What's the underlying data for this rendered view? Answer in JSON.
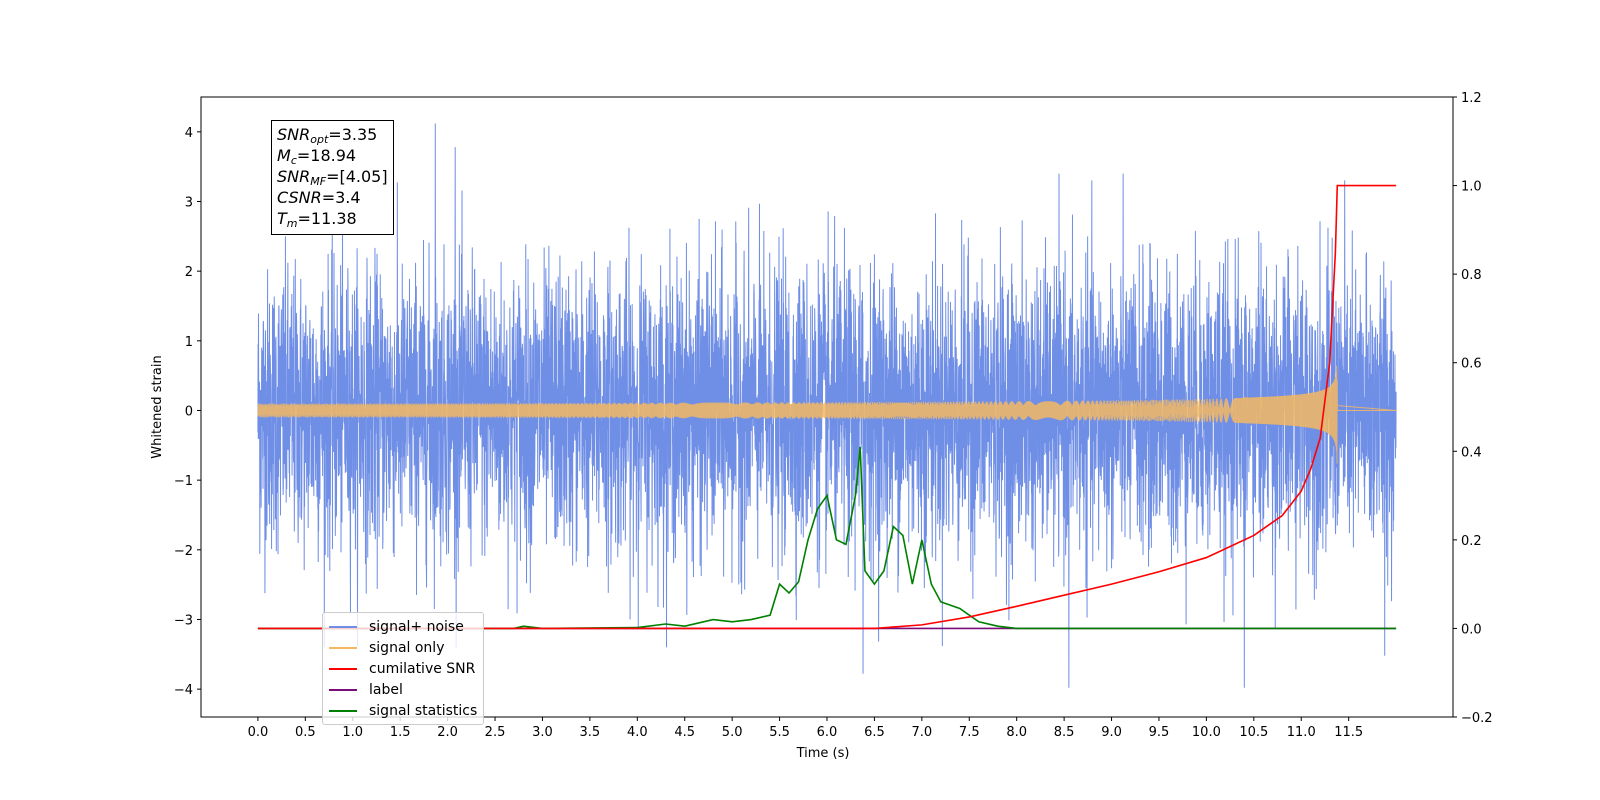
{
  "chart_data": {
    "type": "line",
    "xlabel": "Time (s)",
    "ylabel": "Whitened strain",
    "xlim": [
      -0.6,
      12.6
    ],
    "ylim": [
      -4.4,
      4.5
    ],
    "y2lim": [
      -0.2,
      1.2
    ],
    "x_ticks": [
      "0.0",
      "0.5",
      "1.0",
      "1.5",
      "2.0",
      "2.5",
      "3.0",
      "3.5",
      "4.0",
      "4.5",
      "5.0",
      "5.5",
      "6.0",
      "6.5",
      "7.0",
      "7.5",
      "8.0",
      "8.5",
      "9.0",
      "9.5",
      "10.0",
      "10.5",
      "11.0",
      "11.5"
    ],
    "y_ticks": [
      "−4",
      "−3",
      "−2",
      "−1",
      "0",
      "1",
      "2",
      "3",
      "4"
    ],
    "y2_ticks": [
      "−0.2",
      "0.0",
      "0.2",
      "0.4",
      "0.6",
      "0.8",
      "1.0",
      "1.2"
    ],
    "series": [
      {
        "name": "signal+ noise",
        "color": "#6f8ee6",
        "axis": "left",
        "kind": "noise",
        "x_range": [
          0.0,
          12.0
        ],
        "approx_std": 1.0,
        "notable_peaks": [
          [
            1.87,
            4.12
          ],
          [
            2.08,
            3.78
          ],
          [
            6.38,
            -3.78
          ],
          [
            8.55,
            -3.98
          ],
          [
            10.4,
            -3.98
          ],
          [
            11.88,
            -3.52
          ]
        ]
      },
      {
        "name": "signal only",
        "color": "#f5b860",
        "axis": "left",
        "kind": "chirp",
        "x_range": [
          0.0,
          12.0
        ],
        "merger_time": 11.38,
        "peak_amplitude": 0.78
      },
      {
        "name": "cumilative SNR",
        "color": "#ff0000",
        "axis": "right",
        "x": [
          0.0,
          6.5,
          7.0,
          7.5,
          8.0,
          8.5,
          9.0,
          9.5,
          10.0,
          10.5,
          10.8,
          11.0,
          11.1,
          11.2,
          11.3,
          11.36,
          11.38,
          11.5,
          12.0
        ],
        "values": [
          0.0,
          0.0,
          0.008,
          0.026,
          0.05,
          0.075,
          0.1,
          0.128,
          0.16,
          0.21,
          0.255,
          0.31,
          0.36,
          0.43,
          0.6,
          0.85,
          1.0,
          1.0,
          1.0
        ]
      },
      {
        "name": "label",
        "color": "#7b0d7b",
        "axis": "right",
        "x": [
          0.0,
          12.0
        ],
        "values": [
          0.0,
          0.0
        ]
      },
      {
        "name": "signal statistics",
        "color": "#008000",
        "axis": "right",
        "x": [
          0.0,
          2.7,
          2.8,
          3.0,
          4.0,
          4.3,
          4.5,
          4.8,
          5.0,
          5.2,
          5.4,
          5.5,
          5.6,
          5.7,
          5.8,
          5.9,
          6.0,
          6.1,
          6.2,
          6.3,
          6.35,
          6.4,
          6.5,
          6.6,
          6.7,
          6.8,
          6.9,
          7.0,
          7.1,
          7.2,
          7.4,
          7.6,
          7.8,
          8.0,
          12.0
        ],
        "values": [
          0.0,
          0.0,
          0.005,
          0.0,
          0.002,
          0.01,
          0.005,
          0.02,
          0.015,
          0.02,
          0.03,
          0.1,
          0.08,
          0.105,
          0.2,
          0.27,
          0.3,
          0.2,
          0.19,
          0.3,
          0.41,
          0.13,
          0.1,
          0.13,
          0.23,
          0.21,
          0.1,
          0.2,
          0.1,
          0.06,
          0.045,
          0.015,
          0.005,
          0.0,
          0.0
        ]
      }
    ],
    "annotation": {
      "lines": [
        {
          "var": "SNR",
          "sub": "opt",
          "value": "=3.35"
        },
        {
          "var": "M",
          "sub": "c",
          "value": "=18.94"
        },
        {
          "var": "SNR",
          "sub": "MF",
          "value": "=[4.05]"
        },
        {
          "var": "CSNR",
          "sub": "",
          "value": "=3.4"
        },
        {
          "var": "T",
          "sub": "m",
          "value": "=11.38"
        }
      ]
    },
    "legend_position": "lower-left",
    "grid": false
  }
}
